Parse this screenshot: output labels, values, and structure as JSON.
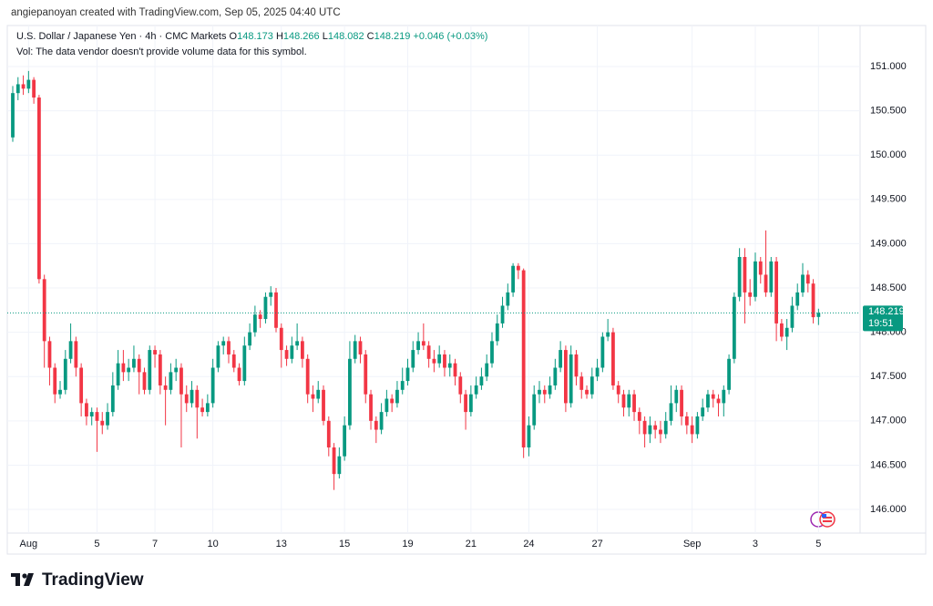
{
  "header": {
    "credit": "angiepanoyan created with TradingView.com, Sep 05, 2025 04:40 UTC",
    "symbol": "U.S. Dollar / Japanese Yen · 4h · CMC Markets",
    "o_label": "O",
    "h_label": "H",
    "l_label": "L",
    "c_label": "C",
    "change": "+0.046 (+0.03%)",
    "vol_note": "Vol: The data vendor doesn't provide volume data for this symbol."
  },
  "chart_data": {
    "type": "candlestick",
    "up_color": "#089981",
    "down_color": "#f23645",
    "grid": true,
    "ylim": [
      145.733,
      151.463
    ],
    "yticks": [
      {
        "value": 146,
        "label": "146.000"
      },
      {
        "value": 146.5,
        "label": "146.500"
      },
      {
        "value": 147,
        "label": "147.000"
      },
      {
        "value": 147.5,
        "label": "147.500"
      },
      {
        "value": 148,
        "label": "148.000"
      },
      {
        "value": 148.5,
        "label": "148.500"
      },
      {
        "value": 149,
        "label": "149.000"
      },
      {
        "value": 149.5,
        "label": "149.500"
      },
      {
        "value": 150,
        "label": "150.000"
      },
      {
        "value": 150.5,
        "label": "150.500"
      },
      {
        "value": 151,
        "label": "151.000"
      }
    ],
    "categories": [
      null,
      null,
      null,
      "Aug",
      null,
      null,
      null,
      null,
      null,
      null,
      null,
      null,
      null,
      null,
      null,
      null,
      "5",
      null,
      null,
      null,
      null,
      null,
      null,
      null,
      null,
      null,
      null,
      "7",
      null,
      null,
      null,
      null,
      null,
      null,
      null,
      null,
      null,
      null,
      "10",
      null,
      null,
      null,
      null,
      null,
      null,
      null,
      null,
      null,
      null,
      null,
      null,
      "13",
      null,
      null,
      null,
      null,
      null,
      null,
      null,
      null,
      null,
      null,
      null,
      "15",
      null,
      null,
      null,
      null,
      null,
      null,
      null,
      null,
      null,
      null,
      null,
      "19",
      null,
      null,
      null,
      null,
      null,
      null,
      null,
      null,
      null,
      null,
      null,
      "21",
      null,
      null,
      null,
      null,
      null,
      null,
      null,
      null,
      null,
      null,
      "24",
      null,
      null,
      null,
      null,
      null,
      null,
      null,
      null,
      null,
      null,
      null,
      null,
      "27",
      null,
      null,
      null,
      null,
      null,
      null,
      null,
      null,
      null,
      null,
      null,
      null,
      null,
      null,
      null,
      null,
      null,
      "Sep",
      null,
      null,
      null,
      null,
      null,
      null,
      null,
      null,
      null,
      null,
      null,
      "3",
      null,
      null,
      null,
      null,
      null,
      null,
      null,
      null,
      null,
      null,
      null,
      "5"
    ],
    "open": [
      150.2,
      150.7,
      150.8,
      150.75,
      150.85,
      150.65,
      148.6,
      147.9,
      147.6,
      147.3,
      147.35,
      147.7,
      147.9,
      147.6,
      147.2,
      147.05,
      147.1,
      147.0,
      146.95,
      147.1,
      147.4,
      147.65,
      147.55,
      147.6,
      147.7,
      147.55,
      147.35,
      147.8,
      147.75,
      147.4,
      147.35,
      147.55,
      147.6,
      147.3,
      147.2,
      147.35,
      147.15,
      147.1,
      147.2,
      147.6,
      147.85,
      147.9,
      147.75,
      147.6,
      147.45,
      147.85,
      148.0,
      148.2,
      148.15,
      148.4,
      148.45,
      148.05,
      147.8,
      147.7,
      147.85,
      147.9,
      147.7,
      147.3,
      147.25,
      147.35,
      147.0,
      146.7,
      146.4,
      146.6,
      146.95,
      147.7,
      147.9,
      147.75,
      147.3,
      147.0,
      146.9,
      147.1,
      147.25,
      147.2,
      147.35,
      147.45,
      147.6,
      147.8,
      147.9,
      147.85,
      147.7,
      147.65,
      147.75,
      147.6,
      147.65,
      147.5,
      147.3,
      147.1,
      147.3,
      147.4,
      147.5,
      147.65,
      147.9,
      148.1,
      148.3,
      148.45,
      148.75,
      148.7,
      146.7,
      146.95,
      147.3,
      147.35,
      147.3,
      147.4,
      147.6,
      147.8,
      147.2,
      147.75,
      147.5,
      147.35,
      147.3,
      147.5,
      147.6,
      147.95,
      148.0,
      147.4,
      147.3,
      147.15,
      147.3,
      147.1,
      147.0,
      146.85,
      146.95,
      146.9,
      146.85,
      147.0,
      147.2,
      147.35,
      147.05,
      146.95,
      146.85,
      147.05,
      147.15,
      147.3,
      147.25,
      147.2,
      147.35,
      147.7,
      148.4,
      148.85,
      148.45,
      148.4,
      148.8,
      148.65,
      148.45,
      148.8,
      148.1,
      147.95,
      148.05,
      148.3,
      148.45,
      148.65,
      148.55,
      148.173
    ],
    "high": [
      150.78,
      150.88,
      150.9,
      150.95,
      150.88,
      150.68,
      148.65,
      147.95,
      147.65,
      147.45,
      147.8,
      148.1,
      147.95,
      147.65,
      147.25,
      147.15,
      147.15,
      147.1,
      147.2,
      147.55,
      147.8,
      147.8,
      147.7,
      147.85,
      147.75,
      147.6,
      147.85,
      147.85,
      147.8,
      147.5,
      147.65,
      147.7,
      147.65,
      147.4,
      147.45,
      147.4,
      147.25,
      147.3,
      147.7,
      147.9,
      147.95,
      147.95,
      147.8,
      147.65,
      147.95,
      148.1,
      148.3,
      148.25,
      148.45,
      148.52,
      148.5,
      148.1,
      147.85,
      147.95,
      148.1,
      147.95,
      147.75,
      147.4,
      147.45,
      147.4,
      147.05,
      146.75,
      146.7,
      147.05,
      147.9,
      147.97,
      147.95,
      147.8,
      147.35,
      147.05,
      147.2,
      147.35,
      147.3,
      147.45,
      147.6,
      147.7,
      147.9,
      148.0,
      148.1,
      147.9,
      147.8,
      147.85,
      147.8,
      147.75,
      147.7,
      147.55,
      147.35,
      147.4,
      147.5,
      147.6,
      147.75,
      148.0,
      148.2,
      148.4,
      148.55,
      148.78,
      148.78,
      148.72,
      147.05,
      147.4,
      147.45,
      147.4,
      147.5,
      147.7,
      147.9,
      147.85,
      147.85,
      147.8,
      147.55,
      147.4,
      147.6,
      147.7,
      148.0,
      148.15,
      148.05,
      147.45,
      147.35,
      147.35,
      147.35,
      147.15,
      147.05,
      147.05,
      147.0,
      147.0,
      147.1,
      147.4,
      147.4,
      147.4,
      147.1,
      147.05,
      147.1,
      147.25,
      147.35,
      147.35,
      147.3,
      147.4,
      147.75,
      148.45,
      148.95,
      148.95,
      148.6,
      148.9,
      148.85,
      149.15,
      148.85,
      148.85,
      148.15,
      148.15,
      148.4,
      148.55,
      148.78,
      148.7,
      148.6,
      148.266
    ],
    "low": [
      150.15,
      150.62,
      150.68,
      150.7,
      150.58,
      148.55,
      147.6,
      147.4,
      147.2,
      147.25,
      147.3,
      147.65,
      147.5,
      147.05,
      146.95,
      146.95,
      146.65,
      146.85,
      146.9,
      147.05,
      147.35,
      147.45,
      147.45,
      147.55,
      147.3,
      147.3,
      147.3,
      147.6,
      147.3,
      146.95,
      147.3,
      147.45,
      146.7,
      147.1,
      147.15,
      146.8,
      147.05,
      147.05,
      147.15,
      147.55,
      147.75,
      147.65,
      147.55,
      147.4,
      147.4,
      147.8,
      147.95,
      148.05,
      148.1,
      148.3,
      148.0,
      147.6,
      147.62,
      147.65,
      147.8,
      147.6,
      147.2,
      147.1,
      147.2,
      146.95,
      146.6,
      146.22,
      146.35,
      146.55,
      146.9,
      147.65,
      147.65,
      147.2,
      146.9,
      146.75,
      146.85,
      147.05,
      147.1,
      147.15,
      147.3,
      147.4,
      147.55,
      147.75,
      147.8,
      147.6,
      147.55,
      147.6,
      147.5,
      147.5,
      147.4,
      147.2,
      146.9,
      147.05,
      147.25,
      147.35,
      147.45,
      147.6,
      147.85,
      148.05,
      148.25,
      148.4,
      148.6,
      146.58,
      146.6,
      146.9,
      147.2,
      147.2,
      147.25,
      147.35,
      147.55,
      147.1,
      147.15,
      147.4,
      147.25,
      147.25,
      147.25,
      147.45,
      147.55,
      147.9,
      147.35,
      147.2,
      147.05,
      147.05,
      147.0,
      146.85,
      146.7,
      146.75,
      146.8,
      146.75,
      146.8,
      146.95,
      147.1,
      146.95,
      146.85,
      146.75,
      146.8,
      147.0,
      147.1,
      147.15,
      147.05,
      147.05,
      147.3,
      147.65,
      148.35,
      148.1,
      148.3,
      148.35,
      148.55,
      148.4,
      148.4,
      147.9,
      147.9,
      147.8,
      148.0,
      148.25,
      148.4,
      148.45,
      148.1,
      148.082
    ],
    "close": [
      150.7,
      150.8,
      150.75,
      150.85,
      150.65,
      148.6,
      147.9,
      147.6,
      147.3,
      147.35,
      147.7,
      147.9,
      147.6,
      147.2,
      147.05,
      147.1,
      147.0,
      146.95,
      147.1,
      147.4,
      147.65,
      147.55,
      147.6,
      147.7,
      147.55,
      147.35,
      147.8,
      147.75,
      147.4,
      147.35,
      147.55,
      147.6,
      147.3,
      147.2,
      147.35,
      147.15,
      147.1,
      147.2,
      147.6,
      147.85,
      147.9,
      147.75,
      147.6,
      147.45,
      147.85,
      148.0,
      148.2,
      148.15,
      148.4,
      148.45,
      148.05,
      147.8,
      147.7,
      147.85,
      147.9,
      147.7,
      147.3,
      147.25,
      147.35,
      147.0,
      146.7,
      146.4,
      146.6,
      146.95,
      147.7,
      147.9,
      147.75,
      147.3,
      147.0,
      146.9,
      147.1,
      147.25,
      147.2,
      147.35,
      147.45,
      147.6,
      147.8,
      147.9,
      147.85,
      147.7,
      147.65,
      147.75,
      147.6,
      147.65,
      147.5,
      147.3,
      147.1,
      147.3,
      147.4,
      147.5,
      147.65,
      147.9,
      148.1,
      148.3,
      148.45,
      148.75,
      148.7,
      146.7,
      146.95,
      147.3,
      147.35,
      147.3,
      147.4,
      147.6,
      147.8,
      147.2,
      147.75,
      147.5,
      147.35,
      147.3,
      147.5,
      147.6,
      147.95,
      148.0,
      147.4,
      147.3,
      147.15,
      147.3,
      147.1,
      147.0,
      146.85,
      146.95,
      146.9,
      146.85,
      147.0,
      147.2,
      147.35,
      147.05,
      146.95,
      146.85,
      147.05,
      147.15,
      147.3,
      147.25,
      147.2,
      147.35,
      147.7,
      148.4,
      148.85,
      148.45,
      148.4,
      148.8,
      148.65,
      148.45,
      148.8,
      148.1,
      147.95,
      148.05,
      148.3,
      148.45,
      148.65,
      148.55,
      148.17,
      148.219
    ],
    "countdown": "19:51"
  },
  "footer": {
    "brand": "TradingView"
  }
}
